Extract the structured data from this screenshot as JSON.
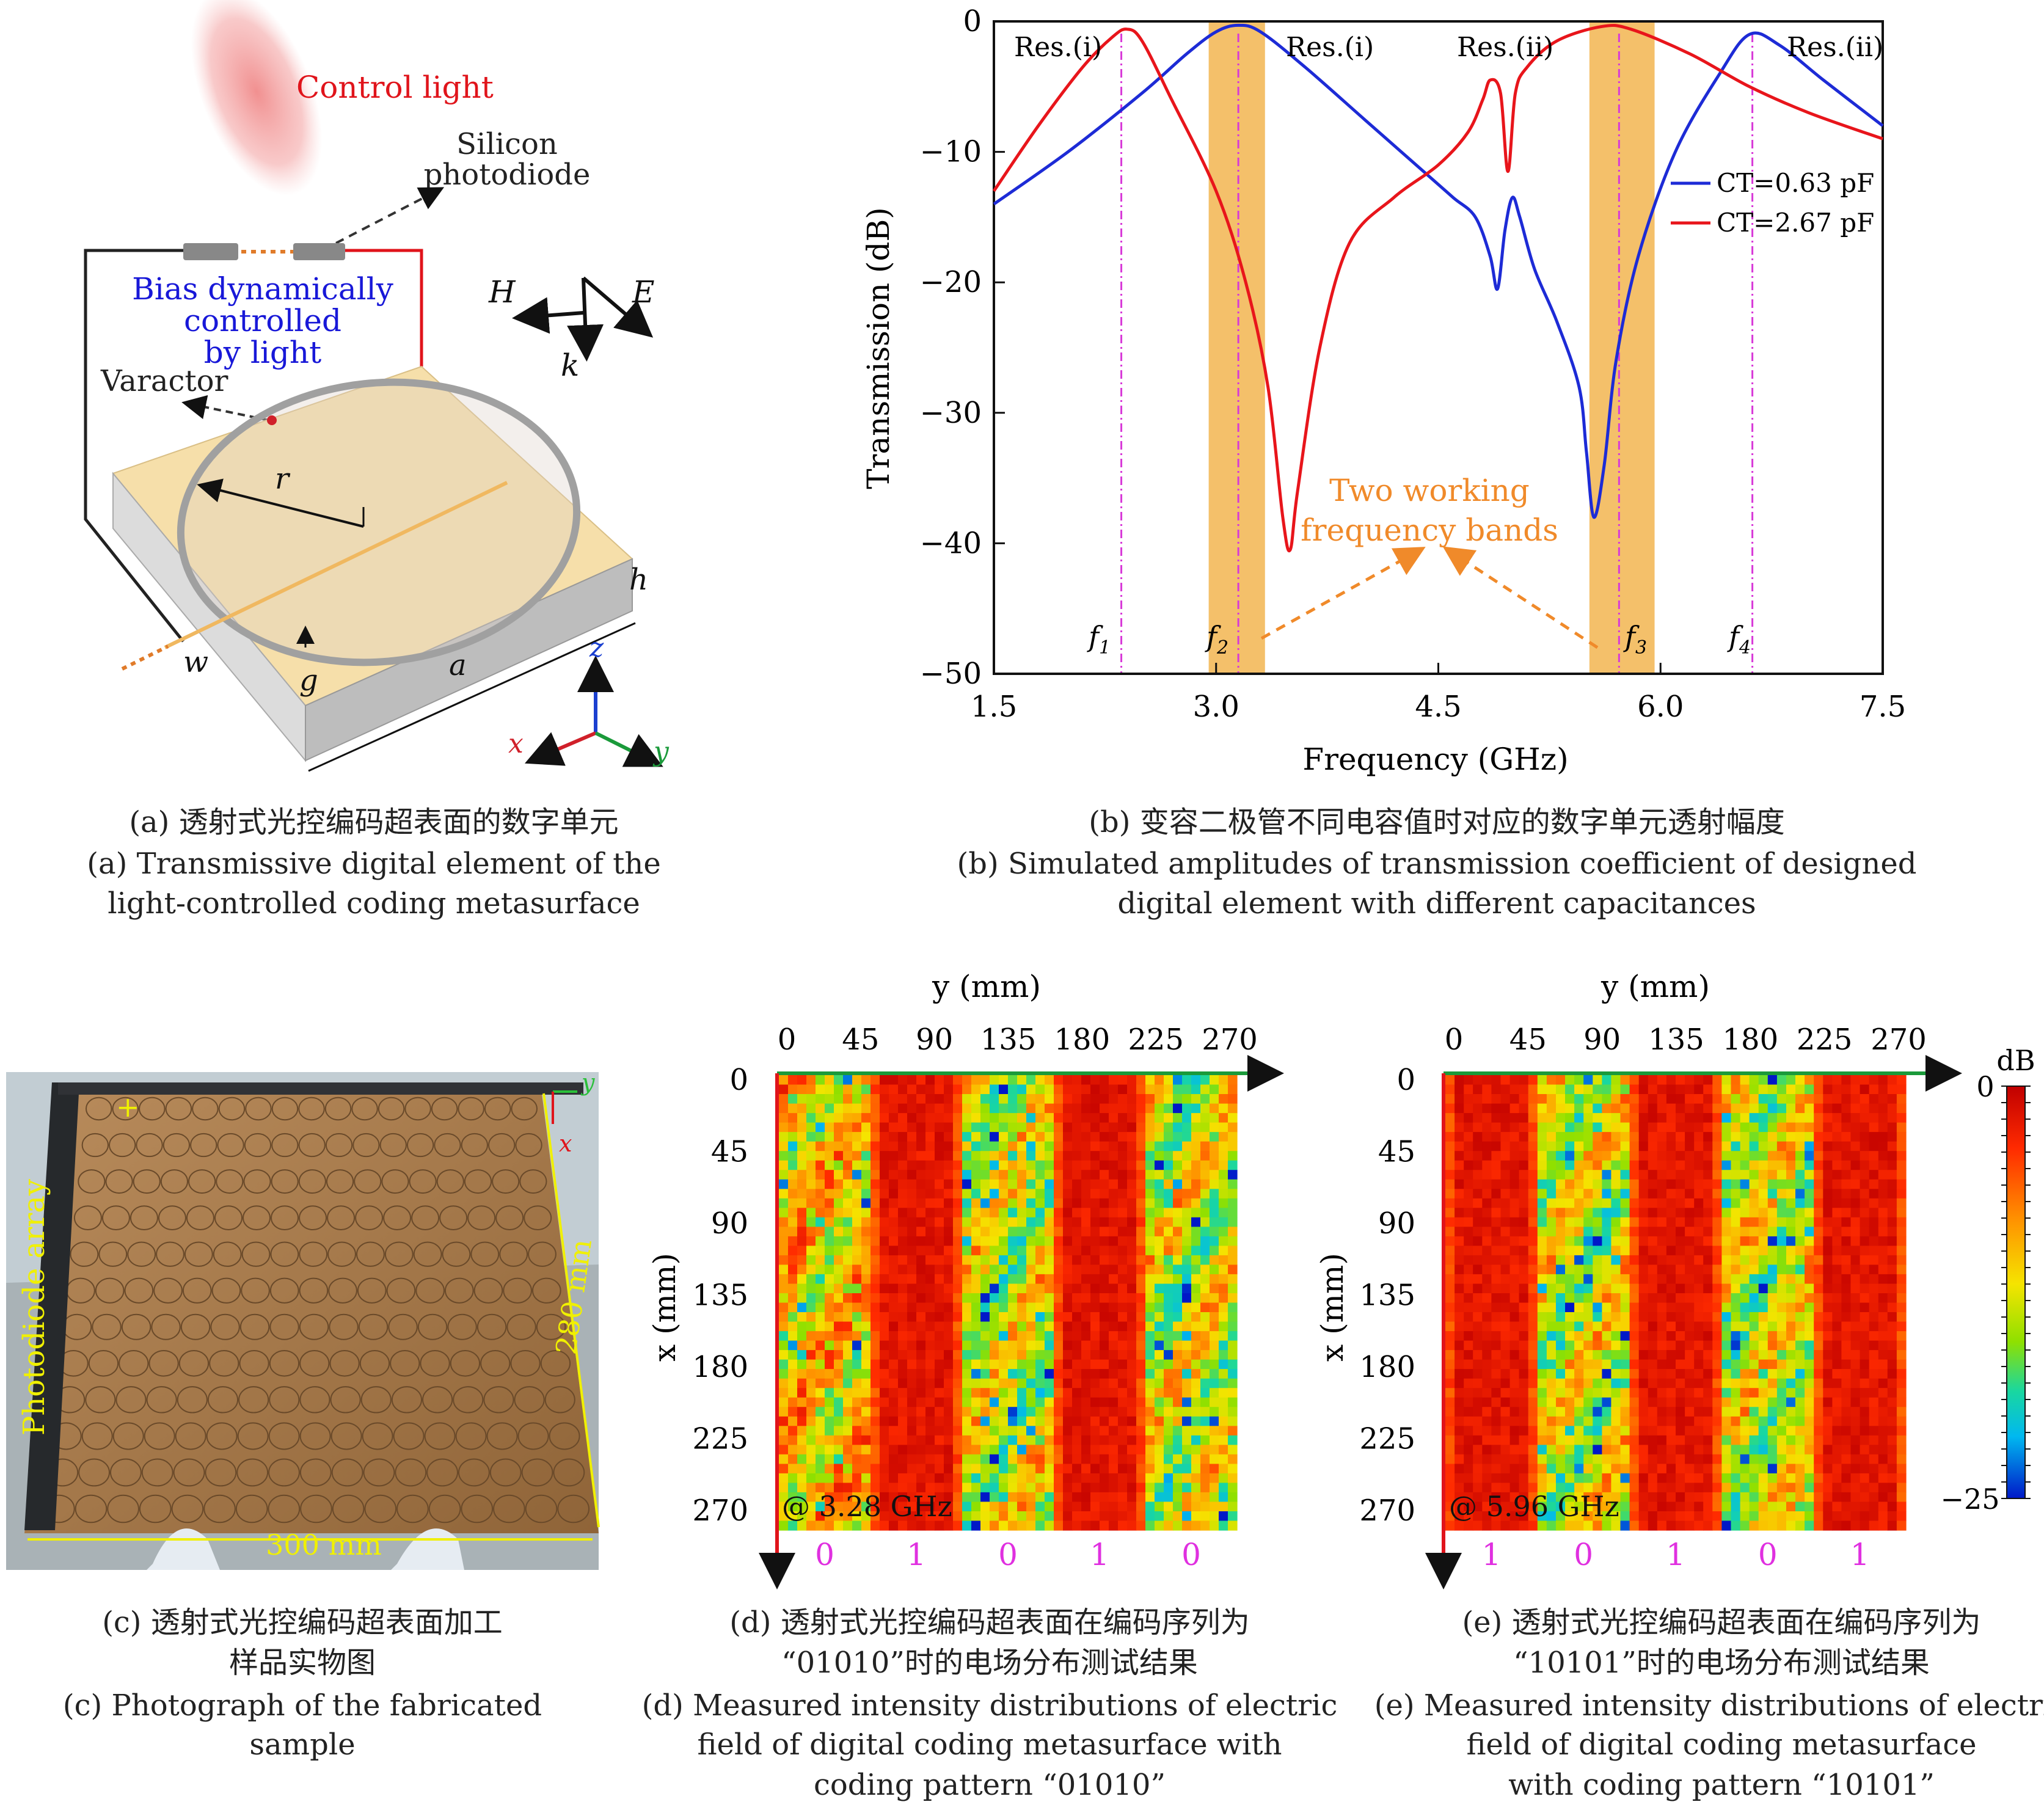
{
  "panel_a": {
    "labels": {
      "control_light": "Control light",
      "silicon_photodiode": "Silicon photodiode",
      "bias": [
        "Bias dynamically",
        "controlled",
        "by light"
      ],
      "varactor": "Varactor",
      "r": "r",
      "h": "h",
      "w": "w",
      "g": "g",
      "a": "a",
      "H": "H",
      "E": "E",
      "k": "k",
      "x": "x",
      "y": "y",
      "z": "z"
    },
    "caption": [
      "(a) 透射式光控编码超表面的数字单元",
      "(a) Transmissive digital element of the",
      "light-controlled coding metasurface"
    ]
  },
  "chart_data": [
    {
      "type": "line",
      "panel": "b",
      "xlabel": "Frequency (GHz)",
      "ylabel": "Transmission (dB)",
      "xlim": [
        1.5,
        7.5
      ],
      "ylim": [
        -50,
        0
      ],
      "xticks": [
        "1.5",
        "3.0",
        "4.5",
        "6.0",
        "7.5"
      ],
      "yticks": [
        "0",
        "−10",
        "−20",
        "−30",
        "−40",
        "−50"
      ],
      "legend_position": "right",
      "series": [
        {
          "name": "CT=0.63 pF",
          "color": "#1d2bd6",
          "x": [
            1.5,
            2.0,
            2.5,
            2.8,
            3.0,
            3.15,
            3.3,
            3.6,
            4.0,
            4.4,
            4.6,
            4.75,
            4.85,
            4.9,
            4.95,
            5.0,
            5.05,
            5.15,
            5.3,
            5.45,
            5.5,
            5.55,
            5.62,
            5.7,
            5.85,
            6.1,
            6.4,
            6.6,
            6.8,
            7.1,
            7.5
          ],
          "y": [
            -14,
            -10,
            -5.5,
            -2.5,
            -0.8,
            -0.3,
            -0.8,
            -3.5,
            -7.5,
            -11.5,
            -13.5,
            -15,
            -18,
            -20.5,
            -16,
            -13.5,
            -15,
            -19,
            -23,
            -28,
            -33,
            -38,
            -34,
            -26,
            -18,
            -10,
            -4,
            -1,
            -1.8,
            -4.5,
            -8
          ]
        },
        {
          "name": "CT=2.67 pF",
          "color": "#e8151b",
          "x": [
            1.5,
            1.8,
            2.1,
            2.3,
            2.4,
            2.5,
            2.7,
            3.0,
            3.2,
            3.35,
            3.45,
            3.5,
            3.55,
            3.7,
            3.9,
            4.2,
            4.5,
            4.7,
            4.8,
            4.85,
            4.92,
            4.97,
            5.02,
            5.1,
            5.3,
            5.6,
            5.8,
            6.2,
            6.6,
            7.0,
            7.5
          ],
          "y": [
            -13,
            -8,
            -3.5,
            -1.2,
            -0.6,
            -1.5,
            -6,
            -13,
            -20,
            -28,
            -38,
            -40.5,
            -36,
            -25,
            -17,
            -13.5,
            -11,
            -8.5,
            -6,
            -4.5,
            -5.5,
            -11.5,
            -5.5,
            -3.5,
            -1.5,
            -0.4,
            -0.6,
            -2.5,
            -5,
            -7,
            -9
          ]
        }
      ],
      "bands_ghz": [
        [
          2.95,
          3.33
        ],
        [
          5.52,
          5.96
        ]
      ],
      "vlines_ghz": [
        2.36,
        3.15,
        5.72,
        6.62
      ],
      "annotations": {
        "res_labels": [
          "Res.(i)",
          "Res.(i)",
          "Res.(ii)",
          "Res.(ii)"
        ],
        "band_text": [
          "Two working",
          "frequency bands"
        ],
        "f_labels": [
          "f1",
          "f2",
          "f3",
          "f4"
        ]
      },
      "caption": [
        "(b) 变容二极管不同电容值时对应的数字单元透射幅度",
        "(b) Simulated amplitudes of transmission coefficient of designed",
        "digital element with different capacitances"
      ]
    },
    {
      "type": "heatmap",
      "panel": "d",
      "xlabel": "y (mm)",
      "ylabel": "x (mm)",
      "ticks": [
        "0",
        "45",
        "90",
        "135",
        "180",
        "225",
        "270"
      ],
      "frequency_label": "@ 3.28 GHz",
      "coding_pattern": [
        "0",
        "1",
        "0",
        "1",
        "0"
      ],
      "column_levels_db": [
        -10,
        -2,
        -13,
        -2,
        -13
      ],
      "caption": [
        "(d) 透射式光控编码超表面在编码序列为",
        "“01010”时的电场分布测试结果",
        "(d) Measured intensity distributions of electric",
        "field of digital coding metasurface with",
        "coding pattern “01010”"
      ]
    },
    {
      "type": "heatmap",
      "panel": "e",
      "xlabel": "y (mm)",
      "ylabel": "x (mm)",
      "ticks": [
        "0",
        "45",
        "90",
        "135",
        "180",
        "225",
        "270"
      ],
      "frequency_label": "@ 5.96 GHz",
      "coding_pattern": [
        "1",
        "0",
        "1",
        "0",
        "1"
      ],
      "column_levels_db": [
        -2,
        -13,
        -2,
        -13,
        -2
      ],
      "colorbar": {
        "unit": "dB",
        "max_label": "0",
        "min_label": "−25",
        "range_db": [
          -25,
          0
        ]
      },
      "caption": [
        "(e) 透射式光控编码超表面在编码序列为",
        "“10101”时的电场分布测试结果",
        "(e) Measured intensity distributions of electric",
        "field of digital coding metasurface",
        "with coding pattern “10101”"
      ]
    }
  ],
  "panel_c": {
    "labels": {
      "photodiode_array": "Photodiode array",
      "width": "300 mm",
      "height": "280 mm",
      "y": "y",
      "x": "x"
    },
    "caption": [
      "(c) 透射式光控编码超表面加工",
      "样品实物图",
      "(c) Photograph of the fabricated",
      "sample"
    ]
  }
}
